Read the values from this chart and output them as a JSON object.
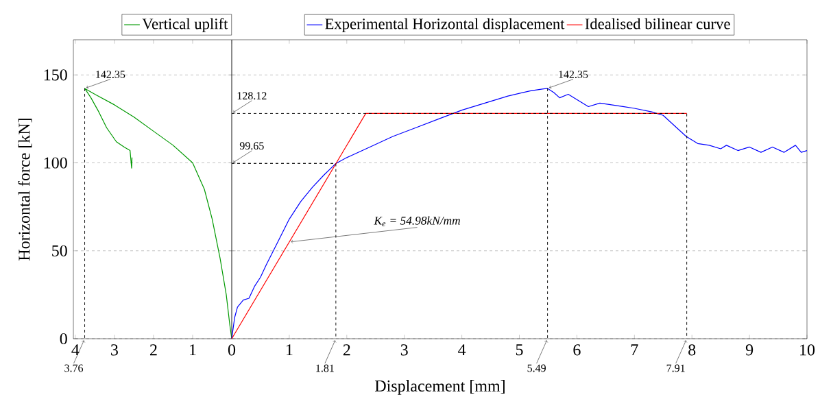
{
  "chart_data": [
    {
      "type": "line",
      "ylabel": "Horizontal force [kN]",
      "xlim": [
        4.05,
        0
      ],
      "ylim": [
        0,
        170
      ],
      "xticks": [
        1,
        2,
        3,
        4
      ],
      "yticks": [
        0,
        50,
        100,
        150
      ],
      "grid": "y",
      "legend": "top right",
      "series": [
        {
          "name": "Vertical uplift",
          "color": "#009900",
          "x": [
            0,
            0.05,
            0.14,
            0.3,
            0.5,
            0.7,
            1.0,
            1.5,
            2.0,
            2.5,
            3.0,
            3.5,
            3.76,
            3.6,
            3.4,
            3.2,
            2.95,
            2.75,
            2.6,
            2.56,
            2.55
          ],
          "values": [
            0,
            8,
            25,
            46,
            68,
            85,
            100,
            110,
            118,
            126,
            133,
            139,
            142.35,
            137,
            129,
            120,
            112,
            109,
            107,
            97,
            103
          ]
        },
        {
          "color": "#000000",
          "line_style": "dashed",
          "x": [
            3.76,
            3.76
          ],
          "values": [
            142.35,
            0
          ]
        }
      ],
      "annotations": [
        {
          "text": "142.35",
          "x": 3.76,
          "y": 142.35
        },
        {
          "text": "3.76",
          "x": 3.76,
          "y": 0
        }
      ]
    },
    {
      "type": "line",
      "xlabel": "Displacement [mm]",
      "xlim": [
        0,
        10
      ],
      "ylim": [
        0,
        170
      ],
      "xticks": [
        0,
        1,
        2,
        3,
        4,
        5,
        6,
        7,
        8,
        9,
        10
      ],
      "yticks": [
        0,
        50,
        100,
        150
      ],
      "grid": "y",
      "legend": "top",
      "tick_labels": "x",
      "series": [
        {
          "name": "Experimental Horizontal displacement",
          "color": "#0000ff",
          "x": [
            0,
            0.05,
            0.1,
            0.2,
            0.3,
            0.4,
            0.5,
            0.6,
            0.8,
            1.0,
            1.2,
            1.4,
            1.6,
            1.81,
            2.0,
            2.4,
            2.8,
            3.2,
            3.6,
            4.0,
            4.4,
            4.8,
            5.2,
            5.4,
            5.49,
            5.6,
            5.7,
            5.85,
            6.0,
            6.2,
            6.4,
            6.6,
            6.8,
            7.0,
            7.3,
            7.5,
            7.7,
            7.9,
            8.1,
            8.3,
            8.5,
            8.6,
            8.8,
            9.0,
            9.2,
            9.4,
            9.6,
            9.8,
            9.9,
            10.0
          ],
          "values": [
            0,
            12,
            18,
            22,
            23,
            30,
            35,
            42,
            55,
            68,
            78,
            86,
            93,
            99.65,
            103,
            109,
            115,
            120,
            125,
            130,
            134,
            138,
            141,
            142,
            142.35,
            140,
            137,
            139,
            136,
            132,
            134,
            133,
            132,
            131,
            129,
            127,
            121,
            115,
            111,
            110,
            108,
            110,
            107,
            109,
            106,
            109,
            106,
            110,
            106,
            107
          ]
        },
        {
          "name": "Idealised bilinear curve",
          "color": "#ff0000",
          "x": [
            0,
            2.33,
            7.91
          ],
          "values": [
            0,
            128.12,
            128.12
          ]
        },
        {
          "color": "#000000",
          "line_style": "dashed",
          "x": [
            0,
            1.81,
            1.81
          ],
          "values": [
            99.65,
            99.65,
            0
          ]
        },
        {
          "color": "#000000",
          "line_style": "dashed",
          "x": [
            0,
            7.91,
            7.91
          ],
          "values": [
            128.12,
            128.12,
            0
          ]
        },
        {
          "color": "#000000",
          "line_style": "dashed",
          "x": [
            5.49,
            5.49
          ],
          "values": [
            142.35,
            0
          ]
        }
      ],
      "annotations": [
        {
          "text": "142.35",
          "x": 5.49,
          "y": 142.35
        },
        {
          "text": "128.12",
          "x": 0,
          "y": 128.12
        },
        {
          "text": "99.65",
          "x": 0,
          "y": 99.65
        },
        {
          "text": "1.81",
          "x": 1.81,
          "y": 0
        },
        {
          "text": "5.49",
          "x": 5.49,
          "y": 0
        },
        {
          "text": "7.91",
          "x": 7.91,
          "y": 0
        },
        {
          "text": "K$_{e}$ = 54.98kN/mm",
          "x": 1.0,
          "y": 55
        }
      ]
    }
  ]
}
